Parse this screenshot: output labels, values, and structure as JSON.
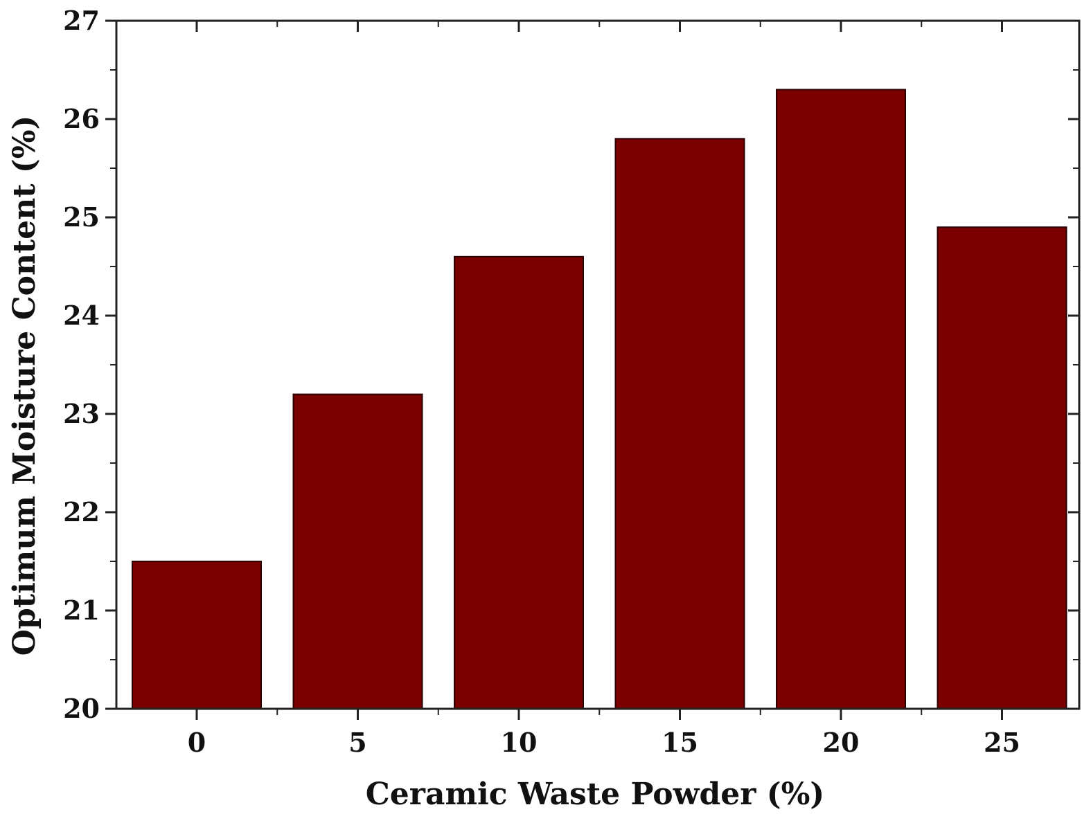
{
  "chart_data": {
    "type": "bar",
    "title": "",
    "xlabel": "Ceramic Waste Powder (%)",
    "ylabel": "Optimum Moisture Content (%)",
    "categories": [
      "0",
      "5",
      "10",
      "15",
      "20",
      "25"
    ],
    "values": [
      21.5,
      23.2,
      24.6,
      25.8,
      26.3,
      24.9
    ],
    "ylim": [
      20,
      27
    ],
    "yticks": [
      "20",
      "21",
      "22",
      "23",
      "24",
      "25",
      "26",
      "27"
    ],
    "grid": false,
    "legend": "none",
    "bar_color": "#7a0000"
  }
}
